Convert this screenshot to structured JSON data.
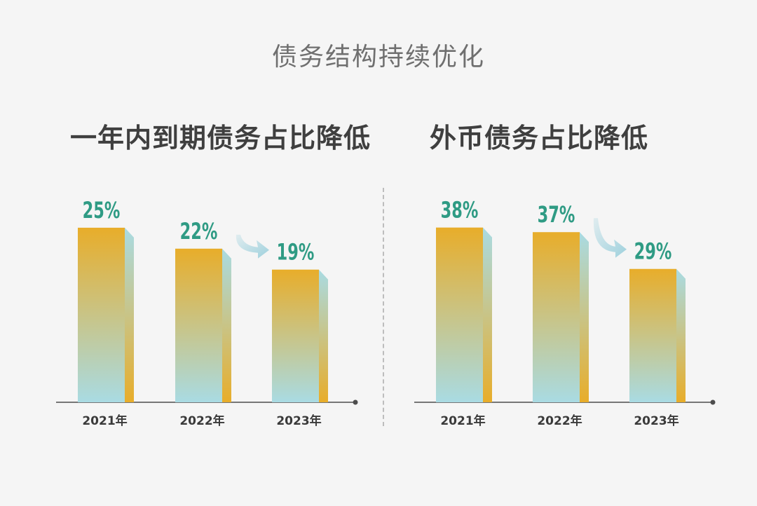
{
  "title": "债务结构持续优化",
  "colors": {
    "bar_top": "#e8ad2a",
    "bar_bottom": "#a9dbe3",
    "side_top": "#a9dbe3",
    "side_bottom": "#e8ad2a",
    "label": "#2f9b84",
    "axis": "#4d4d4d",
    "arrow": "#9fd1dd"
  },
  "chart_data": [
    {
      "type": "bar",
      "title": "一年内到期债务占比降低",
      "categories": [
        "2021年",
        "2022年",
        "2023年"
      ],
      "values": [
        25,
        22,
        19
      ],
      "value_labels": [
        "25%",
        "22%",
        "19%"
      ],
      "ylim": [
        0,
        27
      ],
      "xlabel": "",
      "ylabel": "",
      "grid": false,
      "annotation": "downward-arrow"
    },
    {
      "type": "bar",
      "title": "外币债务占比降低",
      "categories": [
        "2021年",
        "2022年",
        "2023年"
      ],
      "values": [
        38,
        37,
        29
      ],
      "value_labels": [
        "38%",
        "37%",
        "29%"
      ],
      "ylim": [
        0,
        41
      ],
      "xlabel": "",
      "ylabel": "",
      "grid": false,
      "annotation": "downward-arrow"
    }
  ]
}
